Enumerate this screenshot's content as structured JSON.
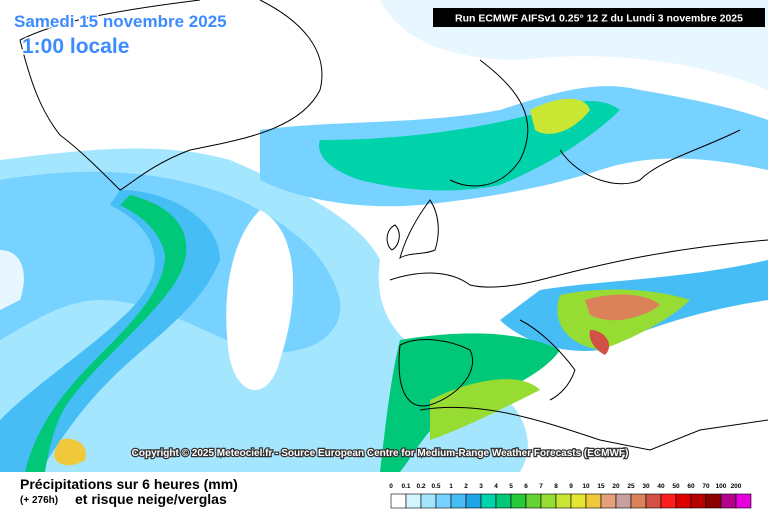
{
  "header": {
    "date": "Samedi 15 novembre 2025",
    "time": "1:00 locale",
    "run": "Run ECMWF AIFSv1 0.25° 12 Z du Lundi 3 novembre 2025"
  },
  "copyright": "Copyright © 2025 Meteociel.fr - Source European Centre for Medium-Range Weather Forecasts (ECMWF)",
  "footer": {
    "title": "Précipitations sur 6 heures (mm)",
    "lead": "(+ 276h)",
    "subtitle": "et risque neige/verglas"
  },
  "legend": {
    "labels": [
      0,
      0.1,
      0.2,
      0.5,
      1,
      2,
      3,
      4,
      5,
      6,
      7,
      8,
      9,
      10,
      15,
      20,
      25,
      30,
      40,
      50,
      60,
      70,
      100,
      200
    ],
    "colors": [
      "#ffffff",
      "#d2f5ff",
      "#a5e6ff",
      "#78d2ff",
      "#46bef5",
      "#1ea5e6",
      "#00d2aa",
      "#00c878",
      "#28c83c",
      "#64d232",
      "#96dc32",
      "#c8e632",
      "#e6e632",
      "#f0c83c",
      "#e6a078",
      "#c8a0a0",
      "#dc825a",
      "#d25046",
      "#ff1e1e",
      "#dc0000",
      "#b40000",
      "#8c0000",
      "#b4008c",
      "#e600dc"
    ]
  }
}
